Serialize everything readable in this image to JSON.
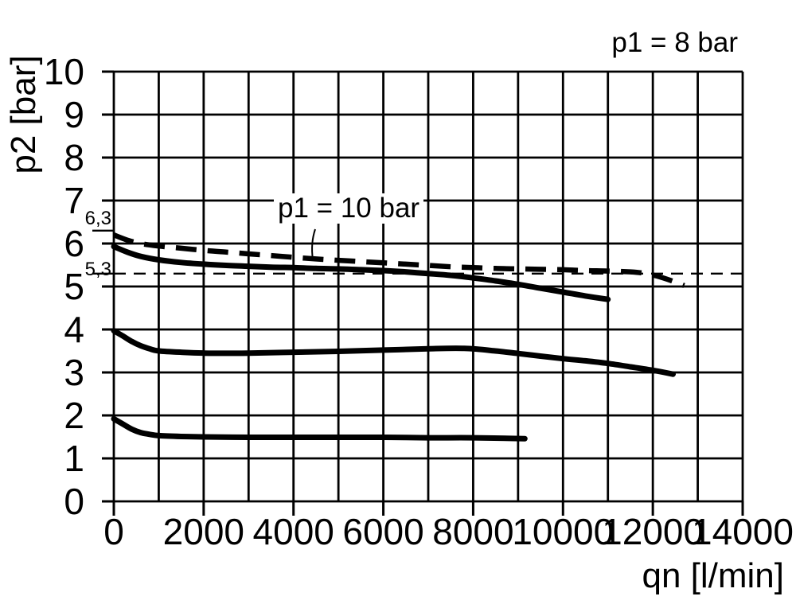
{
  "annotations": {
    "p1_8bar": "p1 = 8 bar",
    "p1_10bar": "p1 = 10 bar"
  },
  "axes": {
    "x": {
      "label": "qn [l/min]",
      "min": 0,
      "max": 14000,
      "grid_step": 1000,
      "label_step": 2000,
      "tick_labels": [
        "0",
        "2000",
        "4000",
        "6000",
        "8000",
        "10000",
        "12000",
        "14000"
      ]
    },
    "y": {
      "label": "p2 [bar]",
      "min": 0,
      "max": 10,
      "grid_step": 1,
      "tick_labels": [
        "0",
        "1",
        "2",
        "3",
        "4",
        "5",
        "6",
        "7",
        "8",
        "9",
        "10"
      ],
      "extra_ticks": [
        {
          "value": 6.3,
          "label": "6,3"
        },
        {
          "value": 5.3,
          "label": "5,3"
        }
      ]
    }
  },
  "chart_data": {
    "type": "line",
    "title": "p1 = 8 bar",
    "xlabel": "qn [l/min]",
    "ylabel": "p2 [bar]",
    "xlim": [
      0,
      14000
    ],
    "ylim": [
      0,
      10
    ],
    "grid": "on (1000 l/min x 1 bar)",
    "legend_position": "none",
    "colors": {
      "foreground": "#000000",
      "background": "#ffffff"
    },
    "series": [
      {
        "name": "reference line 5,3 bar",
        "style": "dashed-thin",
        "points": [
          [
            0,
            5.3
          ],
          [
            14000,
            5.3
          ]
        ]
      },
      {
        "name": "p1 = 10 bar",
        "style": "dashed-heavy",
        "points": [
          [
            0,
            6.2
          ],
          [
            300,
            6.08
          ],
          [
            600,
            6.0
          ],
          [
            1000,
            5.94
          ],
          [
            1500,
            5.89
          ],
          [
            2000,
            5.84
          ],
          [
            2500,
            5.8
          ],
          [
            3000,
            5.76
          ],
          [
            3500,
            5.72
          ],
          [
            4000,
            5.68
          ],
          [
            4500,
            5.64
          ],
          [
            5000,
            5.61
          ],
          [
            5500,
            5.58
          ],
          [
            6000,
            5.55
          ],
          [
            6500,
            5.52
          ],
          [
            7000,
            5.49
          ],
          [
            7500,
            5.46
          ],
          [
            8000,
            5.44
          ],
          [
            8500,
            5.42
          ],
          [
            9000,
            5.41
          ],
          [
            9500,
            5.4
          ],
          [
            10000,
            5.39
          ],
          [
            10500,
            5.37
          ],
          [
            11000,
            5.36
          ],
          [
            11500,
            5.34
          ],
          [
            11800,
            5.31
          ],
          [
            12100,
            5.24
          ],
          [
            12400,
            5.14
          ],
          [
            12700,
            5.02
          ]
        ]
      },
      {
        "name": "p1 = 8 bar - upper curve",
        "style": "solid-heavy",
        "points": [
          [
            0,
            5.93
          ],
          [
            300,
            5.8
          ],
          [
            600,
            5.7
          ],
          [
            1000,
            5.62
          ],
          [
            1500,
            5.56
          ],
          [
            2000,
            5.52
          ],
          [
            2500,
            5.49
          ],
          [
            3000,
            5.47
          ],
          [
            3500,
            5.45
          ],
          [
            4000,
            5.44
          ],
          [
            4500,
            5.42
          ],
          [
            5000,
            5.41
          ],
          [
            5500,
            5.39
          ],
          [
            6000,
            5.37
          ],
          [
            6500,
            5.34
          ],
          [
            7000,
            5.3
          ],
          [
            7500,
            5.26
          ],
          [
            8000,
            5.2
          ],
          [
            8500,
            5.13
          ],
          [
            9000,
            5.05
          ],
          [
            9500,
            4.96
          ],
          [
            10000,
            4.87
          ],
          [
            10500,
            4.78
          ],
          [
            11000,
            4.7
          ]
        ]
      },
      {
        "name": "p1 = 8 bar - middle curve",
        "style": "solid-heavy",
        "points": [
          [
            0,
            3.97
          ],
          [
            200,
            3.85
          ],
          [
            400,
            3.72
          ],
          [
            600,
            3.62
          ],
          [
            800,
            3.55
          ],
          [
            1000,
            3.5
          ],
          [
            1500,
            3.47
          ],
          [
            2000,
            3.45
          ],
          [
            3000,
            3.45
          ],
          [
            4000,
            3.47
          ],
          [
            5000,
            3.49
          ],
          [
            6000,
            3.52
          ],
          [
            7000,
            3.55
          ],
          [
            7800,
            3.56
          ],
          [
            8500,
            3.5
          ],
          [
            9000,
            3.44
          ],
          [
            9500,
            3.38
          ],
          [
            10000,
            3.32
          ],
          [
            10500,
            3.27
          ],
          [
            11000,
            3.21
          ],
          [
            11500,
            3.13
          ],
          [
            12000,
            3.05
          ],
          [
            12450,
            2.96
          ]
        ]
      },
      {
        "name": "p1 = 8 bar - lower curve",
        "style": "solid-heavy",
        "points": [
          [
            0,
            1.92
          ],
          [
            200,
            1.8
          ],
          [
            400,
            1.68
          ],
          [
            600,
            1.6
          ],
          [
            800,
            1.56
          ],
          [
            1000,
            1.53
          ],
          [
            1500,
            1.51
          ],
          [
            2000,
            1.5
          ],
          [
            3000,
            1.49
          ],
          [
            4000,
            1.49
          ],
          [
            5000,
            1.49
          ],
          [
            6000,
            1.49
          ],
          [
            7000,
            1.48
          ],
          [
            8000,
            1.48
          ],
          [
            9150,
            1.46
          ]
        ]
      }
    ]
  }
}
